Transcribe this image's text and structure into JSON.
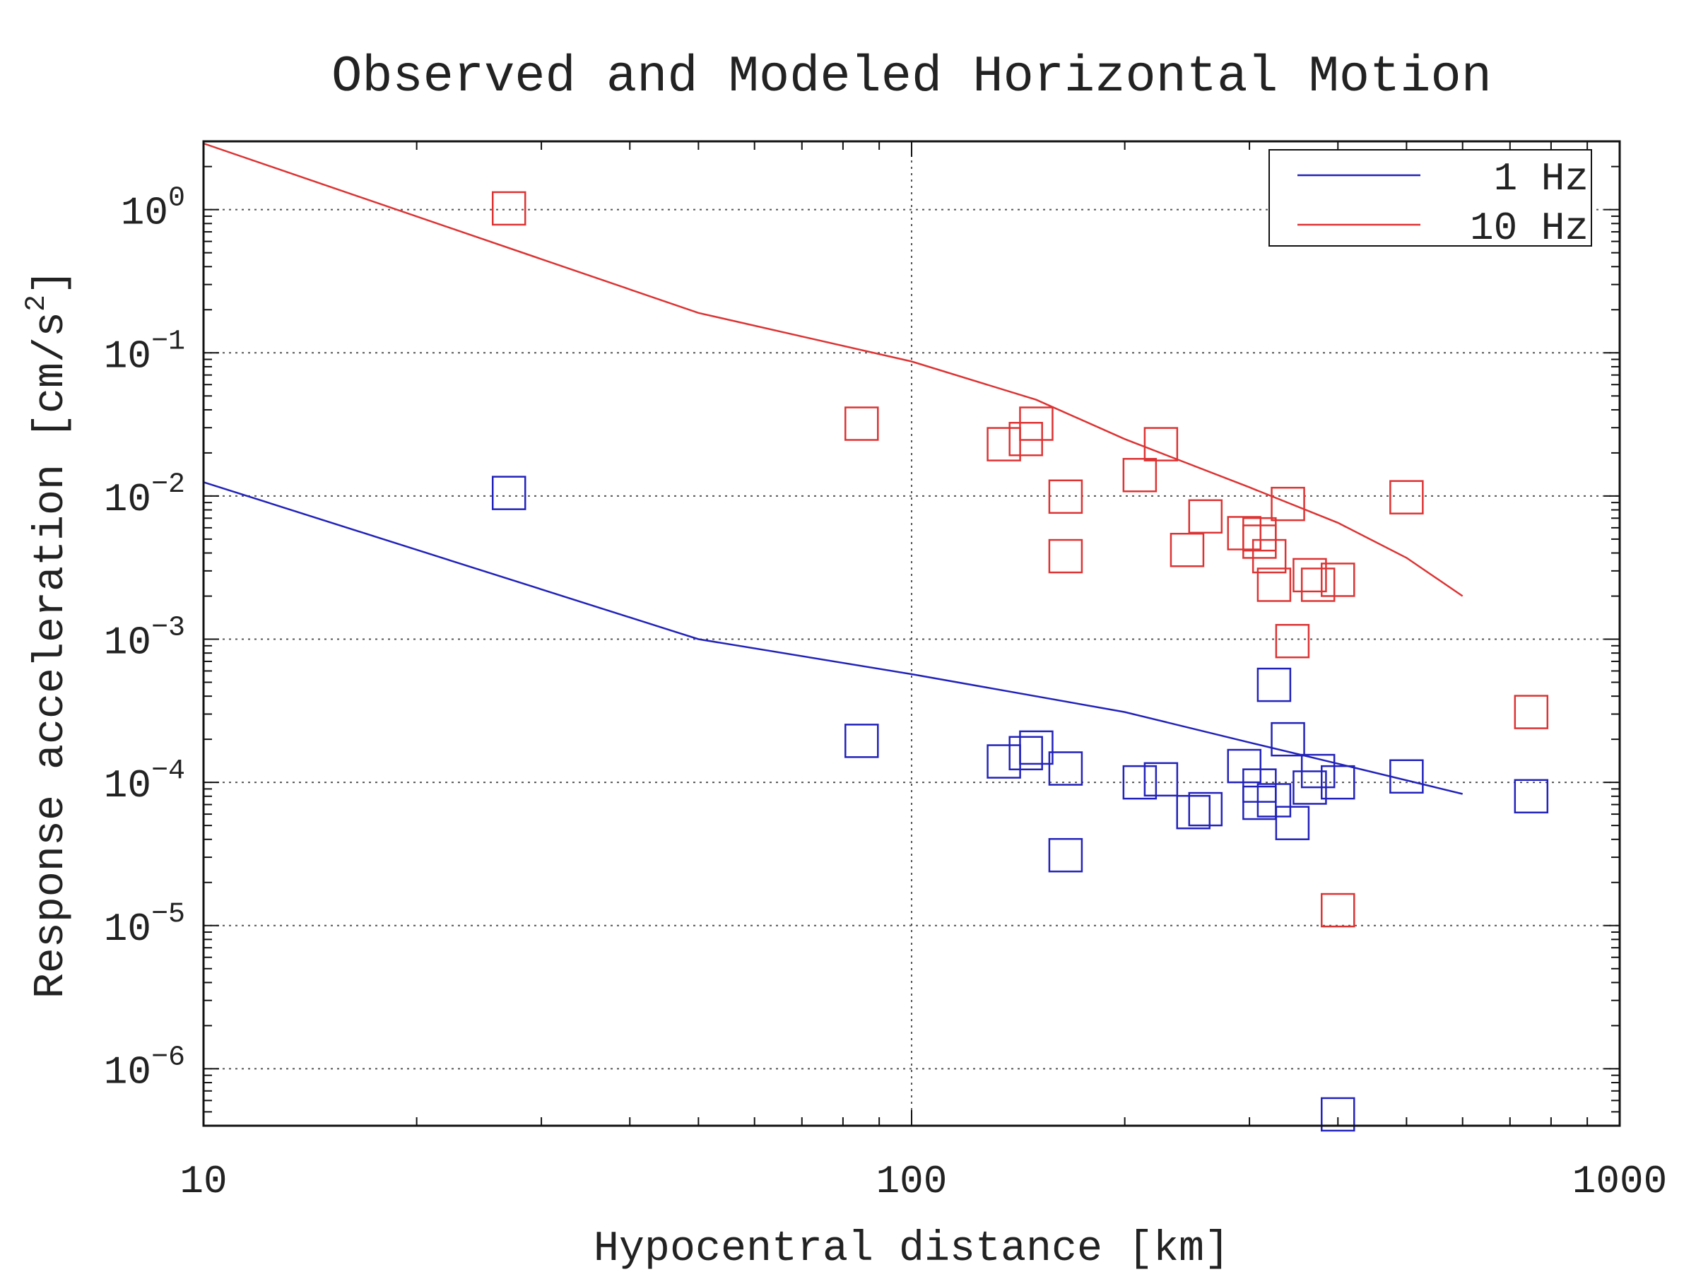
{
  "chart_data": {
    "type": "scatter",
    "title": "Observed and Modeled Horizontal Motion",
    "xlabel": "Hypocentral distance [km]",
    "ylabel_prefix": "Response acceleration [cm/s",
    "ylabel_exp": "2",
    "ylabel_suffix": "]",
    "xscale": "log",
    "yscale": "log",
    "xlim": [
      10,
      1000
    ],
    "ylim": [
      4e-07,
      3
    ],
    "grid": true,
    "legend_position": "top-right",
    "x_ticks": [
      {
        "value": 10,
        "label": "10"
      },
      {
        "value": 100,
        "label": "100"
      },
      {
        "value": 1000,
        "label": "1000"
      }
    ],
    "y_ticks": [
      {
        "value": 1,
        "base": "10",
        "exp": "0"
      },
      {
        "value": 0.1,
        "base": "10",
        "exp": "−1"
      },
      {
        "value": 0.01,
        "base": "10",
        "exp": "−2"
      },
      {
        "value": 0.001,
        "base": "10",
        "exp": "−3"
      },
      {
        "value": 0.0001,
        "base": "10",
        "exp": "−4"
      },
      {
        "value": 1e-05,
        "base": "10",
        "exp": "−5"
      },
      {
        "value": 1e-06,
        "base": "10",
        "exp": "−6"
      }
    ],
    "lines": [
      {
        "name": "1 Hz",
        "color": "#2222bb",
        "points": [
          [
            10,
            0.0125
          ],
          [
            50,
            0.001
          ],
          [
            100,
            0.00057
          ],
          [
            200,
            0.00031
          ],
          [
            300,
            0.00019
          ],
          [
            400,
            0.000135
          ],
          [
            600,
            8.3e-05
          ]
        ]
      },
      {
        "name": "10 Hz",
        "color": "#dd3333",
        "points": [
          [
            10,
            2.9
          ],
          [
            50,
            0.19
          ],
          [
            100,
            0.087
          ],
          [
            150,
            0.047
          ],
          [
            200,
            0.025
          ],
          [
            300,
            0.0115
          ],
          [
            400,
            0.0065
          ],
          [
            500,
            0.0037
          ],
          [
            600,
            0.002
          ]
        ]
      }
    ],
    "scatter": [
      {
        "color": "#2222bb",
        "points": [
          [
            27,
            0.0105
          ],
          [
            85,
            0.000195
          ],
          [
            135,
            0.00014
          ],
          [
            145,
            0.00016
          ],
          [
            150,
            0.000175
          ],
          [
            165,
            0.000125
          ],
          [
            165,
            3.1e-05
          ],
          [
            210,
            0.0001
          ],
          [
            225,
            0.000105
          ],
          [
            250,
            6.2e-05
          ],
          [
            260,
            6.5e-05
          ],
          [
            295,
            0.00013
          ],
          [
            310,
            9.5e-05
          ],
          [
            310,
            7.2e-05
          ],
          [
            325,
            7.5e-05
          ],
          [
            325,
            0.00048
          ],
          [
            340,
            0.0002
          ],
          [
            345,
            5.2e-05
          ],
          [
            365,
            9.2e-05
          ],
          [
            375,
            0.00012
          ],
          [
            400,
            0.0001
          ],
          [
            400,
            4.8e-07
          ],
          [
            500,
            0.00011
          ],
          [
            750,
            8e-05
          ]
        ]
      },
      {
        "color": "#dd3333",
        "points": [
          [
            27,
            1.02
          ],
          [
            85,
            0.032
          ],
          [
            135,
            0.023
          ],
          [
            145,
            0.025
          ],
          [
            150,
            0.032
          ],
          [
            165,
            0.0099
          ],
          [
            165,
            0.0038
          ],
          [
            210,
            0.014
          ],
          [
            225,
            0.023
          ],
          [
            245,
            0.0042
          ],
          [
            260,
            0.0072
          ],
          [
            295,
            0.0055
          ],
          [
            310,
            0.0054
          ],
          [
            310,
            0.0048
          ],
          [
            320,
            0.0038
          ],
          [
            325,
            0.0024
          ],
          [
            340,
            0.0088
          ],
          [
            345,
            0.00097
          ],
          [
            365,
            0.0028
          ],
          [
            375,
            0.0024
          ],
          [
            400,
            0.0026
          ],
          [
            400,
            1.28e-05
          ],
          [
            500,
            0.0098
          ],
          [
            750,
            0.00031
          ]
        ]
      }
    ]
  }
}
